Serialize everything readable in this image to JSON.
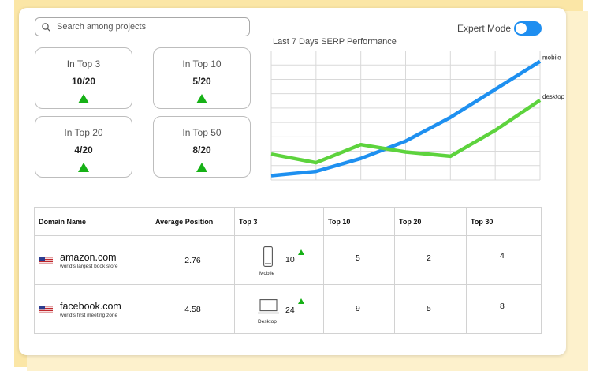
{
  "search": {
    "placeholder": "Search among projects"
  },
  "stats": [
    {
      "label": "In Top 3",
      "value": "10/20"
    },
    {
      "label": "In Top 10",
      "value": "5/20"
    },
    {
      "label": "In Top 20",
      "value": "4/20"
    },
    {
      "label": "In Top 50",
      "value": "8/20"
    }
  ],
  "expert_mode": {
    "label": "Expert Mode",
    "enabled": true
  },
  "chart_title": "Last 7 Days SERP Performance",
  "chart_data": {
    "type": "line",
    "title": "Last 7 Days SERP Performance",
    "xlabel": "",
    "ylabel": "",
    "grid": true,
    "legend": "inline-right",
    "x": [
      1,
      2,
      3,
      4,
      5,
      6,
      7
    ],
    "series": [
      {
        "name": "mobile",
        "color": "#1e90f0",
        "values": [
          1.0,
          2.0,
          5.0,
          9.0,
          14.5,
          21.0,
          27.5
        ]
      },
      {
        "name": "desktop",
        "color": "#5dd33d",
        "values": [
          6.0,
          4.0,
          8.2,
          6.5,
          5.5,
          11.5,
          18.5
        ]
      }
    ],
    "ylim": [
      0,
      30
    ]
  },
  "table": {
    "headers": [
      "Domain Name",
      "Average Position",
      "Top 3",
      "Top 10",
      "Top 20",
      "Top 30"
    ],
    "rows": [
      {
        "domain": "amazon.com",
        "subtitle": "world's largest book store",
        "avg_position": "2.76",
        "device": "Mobile",
        "top3": "10",
        "top10": "5",
        "top20": "2",
        "top30": "4"
      },
      {
        "domain": "facebook.com",
        "subtitle": "world's first meeting zone",
        "avg_position": "4.58",
        "device": "Desktop",
        "top3": "24",
        "top10": "9",
        "top20": "5",
        "top30": "8"
      }
    ]
  },
  "icons": {
    "search": "search-icon",
    "trend_up": "trend-up-icon",
    "flag": "us-flag-icon",
    "mobile": "mobile-phone-icon",
    "desktop": "desktop-monitor-icon"
  }
}
